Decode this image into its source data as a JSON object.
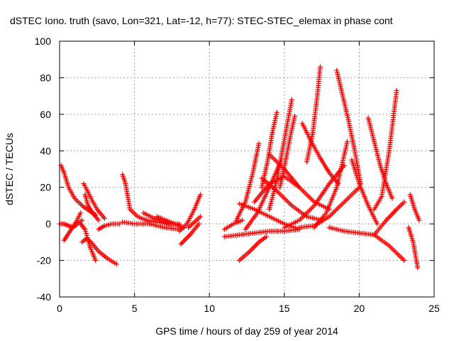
{
  "chart_data": {
    "type": "scatter",
    "title": "dSTEC Iono. truth (savo, Lon=321, Lat=-12, h=77): STEC-STEC_elemax in phase cont",
    "xlabel": "GPS time / hours of day 259 of year 2014",
    "ylabel": "dSTEC  / TECUs",
    "xlim": [
      0,
      25
    ],
    "ylim": [
      -40,
      100
    ],
    "xticks": [
      0,
      5,
      10,
      15,
      20,
      25
    ],
    "yticks": [
      -40,
      -20,
      0,
      20,
      40,
      60,
      80,
      100
    ],
    "grid": true,
    "legend": "none",
    "marker": "+",
    "color": "#ff0000",
    "series": [
      {
        "x": [
          0.1,
          0.3,
          0.6,
          1.0,
          1.5,
          2.0,
          2.4
        ],
        "y": [
          32,
          28,
          20,
          14,
          10,
          7,
          5
        ]
      },
      {
        "x": [
          0.0,
          0.3,
          0.6,
          0.9,
          1.2,
          1.5
        ],
        "y": [
          0,
          0,
          -1,
          -2,
          0,
          2
        ]
      },
      {
        "x": [
          0.3,
          0.7,
          1.1,
          1.4
        ],
        "y": [
          -9,
          -4,
          1,
          6
        ]
      },
      {
        "x": [
          1.4,
          1.7,
          2.0,
          2.4
        ],
        "y": [
          0,
          -3,
          -12,
          -20
        ]
      },
      {
        "x": [
          1.6,
          1.8,
          2.1,
          2.5,
          3.0
        ],
        "y": [
          22,
          19,
          14,
          8,
          3
        ]
      },
      {
        "x": [
          1.5,
          1.8,
          2.1,
          2.6,
          3.2,
          3.8
        ],
        "y": [
          -10,
          -8,
          -10,
          -15,
          -19,
          -22
        ]
      },
      {
        "x": [
          1.7,
          1.9,
          2.2,
          2.6
        ],
        "y": [
          16,
          10,
          6,
          2
        ]
      },
      {
        "x": [
          2.6,
          3.0,
          3.5,
          4.0
        ],
        "y": [
          -3,
          -1,
          0,
          0
        ]
      },
      {
        "x": [
          4.2,
          4.4,
          4.7,
          5.2,
          5.8,
          6.5,
          7.3,
          8.0
        ],
        "y": [
          27,
          22,
          8,
          4,
          2,
          1,
          0,
          0
        ]
      },
      {
        "x": [
          4.2,
          5.0,
          6.0,
          7.0,
          8.0
        ],
        "y": [
          1,
          0,
          0,
          -2,
          -3
        ]
      },
      {
        "x": [
          5.6,
          6.3,
          7.0,
          7.6
        ],
        "y": [
          6,
          3,
          1,
          0
        ]
      },
      {
        "x": [
          6.5,
          7.1,
          7.7,
          8.3
        ],
        "y": [
          4,
          2,
          0,
          -2
        ]
      },
      {
        "x": [
          8.0,
          8.5,
          9.0,
          9.4
        ],
        "y": [
          -4,
          0,
          8,
          16
        ]
      },
      {
        "x": [
          8.1,
          8.7,
          9.3
        ],
        "y": [
          -11,
          -6,
          0
        ]
      },
      {
        "x": [
          8.6,
          9.0,
          9.4
        ],
        "y": [
          -2,
          1,
          4
        ]
      },
      {
        "x": [
          11.0,
          11.6,
          12.2
        ],
        "y": [
          -3,
          0,
          2
        ]
      },
      {
        "x": [
          11.0,
          12.0,
          13.0,
          14.0,
          15.0,
          16.0
        ],
        "y": [
          -7,
          -6,
          -5,
          -4,
          -4,
          -3
        ]
      },
      {
        "x": [
          12.0,
          12.7,
          13.3,
          13.8
        ],
        "y": [
          -20,
          -15,
          -10,
          -7
        ]
      },
      {
        "x": [
          11.8,
          12.4,
          12.9,
          13.3
        ],
        "y": [
          2,
          12,
          28,
          44
        ]
      },
      {
        "x": [
          12.4,
          13.2,
          14.0,
          14.8
        ],
        "y": [
          -3,
          6,
          20,
          35
        ]
      },
      {
        "x": [
          13.5,
          13.9,
          14.2,
          14.5
        ],
        "y": [
          20,
          35,
          50,
          61
        ]
      },
      {
        "x": [
          14.0,
          14.5,
          15.0,
          15.5
        ],
        "y": [
          8,
          24,
          46,
          68
        ]
      },
      {
        "x": [
          14.7,
          15.1,
          15.4,
          15.7
        ],
        "y": [
          20,
          35,
          48,
          59
        ]
      },
      {
        "x": [
          16.5,
          16.9,
          17.2,
          17.4
        ],
        "y": [
          34,
          50,
          70,
          86
        ]
      },
      {
        "x": [
          12.0,
          13.0,
          14.0,
          15.0,
          16.0
        ],
        "y": [
          11,
          8,
          4,
          0,
          -3
        ]
      },
      {
        "x": [
          13.0,
          14.0,
          15.0,
          16.0
        ],
        "y": [
          12,
          22,
          26,
          20
        ]
      },
      {
        "x": [
          13.5,
          14.5,
          15.5,
          16.5,
          17.5
        ],
        "y": [
          25,
          18,
          10,
          4,
          2
        ]
      },
      {
        "x": [
          14.0,
          15.0,
          16.0,
          17.0,
          18.0
        ],
        "y": [
          38,
          30,
          20,
          12,
          8
        ]
      },
      {
        "x": [
          16.2,
          16.8,
          17.4,
          18.0,
          18.6
        ],
        "y": [
          55,
          45,
          36,
          28,
          22
        ]
      },
      {
        "x": [
          15.0,
          16.0,
          17.0,
          18.0,
          19.0
        ],
        "y": [
          -2,
          2,
          10,
          22,
          32
        ]
      },
      {
        "x": [
          16.0,
          17.0,
          18.0,
          19.0,
          20.0
        ],
        "y": [
          -2,
          -1,
          4,
          12,
          20
        ]
      },
      {
        "x": [
          17.0,
          17.8,
          18.5,
          19.2
        ],
        "y": [
          -2,
          6,
          20,
          45
        ]
      },
      {
        "x": [
          18.5,
          18.9,
          19.3,
          19.7,
          20.1
        ],
        "y": [
          84,
          70,
          56,
          40,
          22
        ]
      },
      {
        "x": [
          18.0,
          19.0,
          20.0,
          21.0,
          22.0,
          23.0
        ],
        "y": [
          -2,
          -4,
          -5,
          -6,
          -12,
          -20
        ]
      },
      {
        "x": [
          20.6,
          21.0,
          21.4,
          21.8,
          22.2
        ],
        "y": [
          58,
          45,
          32,
          22,
          14
        ]
      },
      {
        "x": [
          21.0,
          21.5,
          22.0,
          22.5
        ],
        "y": [
          8,
          15,
          40,
          73
        ]
      },
      {
        "x": [
          21.0,
          21.8,
          22.5,
          23.0
        ],
        "y": [
          -6,
          2,
          8,
          12
        ]
      },
      {
        "x": [
          19.5,
          20.0,
          20.6,
          21.2
        ],
        "y": [
          35,
          22,
          10,
          0
        ]
      },
      {
        "x": [
          23.4,
          23.7,
          24.0
        ],
        "y": [
          16,
          8,
          2
        ]
      },
      {
        "x": [
          23.3,
          23.6,
          23.9
        ],
        "y": [
          -2,
          -10,
          -24
        ]
      }
    ]
  }
}
